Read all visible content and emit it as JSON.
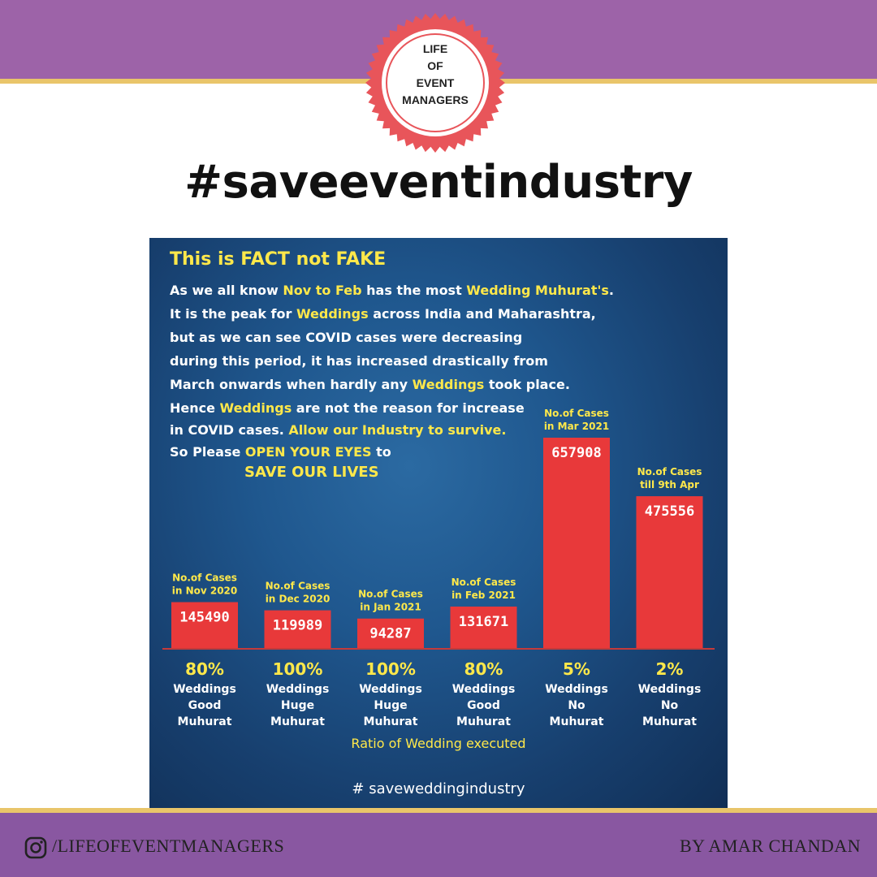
{
  "logo": {
    "lines": [
      "LIFE",
      "OF",
      "EVENT",
      "MANAGERS"
    ]
  },
  "hashtag": "#saveeventindustry",
  "poster": {
    "heading": "This is FACT not FAKE",
    "para1": [
      [
        {
          "t": "As we all know "
        },
        {
          "t": "Nov to Feb",
          "y": true
        },
        {
          "t": " has the most "
        },
        {
          "t": "Wedding Muhurat's",
          "y": true
        },
        {
          "t": "."
        }
      ],
      [
        {
          "t": "It is the peak for "
        },
        {
          "t": "Weddings",
          "y": true
        },
        {
          "t": " across India and Maharashtra,"
        }
      ],
      [
        {
          "t": "but as we can see COVID cases were decreasing"
        }
      ],
      [
        {
          "t": "during this period, it has increased drastically from"
        }
      ],
      [
        {
          "t": "March onwards when hardly any "
        },
        {
          "t": "Weddings",
          "y": true
        },
        {
          "t": " took place."
        }
      ]
    ],
    "para2": [
      [
        {
          "t": "Hence "
        },
        {
          "t": "Weddings",
          "y": true
        },
        {
          "t": " are not the reason for increase"
        }
      ],
      [
        {
          "t": "in COVID cases. "
        },
        {
          "t": "Allow our Industry to survive.",
          "y": true
        }
      ],
      [
        {
          "t": "So Please "
        },
        {
          "t": "OPEN YOUR EYES",
          "y": true
        },
        {
          "t": " to"
        }
      ]
    ],
    "save_text": "SAVE OUR LIVES",
    "footer_hashtag": "# saveweddingindustry"
  },
  "chart_data": {
    "type": "bar",
    "categories": [
      "Nov 2020",
      "Dec 2020",
      "Jan 2021",
      "Feb 2021",
      "Mar 2021",
      "9th Apr"
    ],
    "values": [
      145490,
      119989,
      94287,
      131671,
      657908,
      475556
    ],
    "ylim": [
      0,
      657908
    ],
    "bar_color": "#e8393a",
    "bar_labels": [
      [
        "No.of Cases",
        "in Nov 2020"
      ],
      [
        "No.of Cases",
        "in Dec 2020"
      ],
      [
        "No.of Cases",
        "in Jan 2021"
      ],
      [
        "No.of Cases",
        "in Feb 2021"
      ],
      [
        "No.of Cases",
        "in Mar 2021"
      ],
      [
        "No.of Cases",
        "till 9th Apr"
      ]
    ],
    "wedding_ratio": [
      "80%",
      "100%",
      "100%",
      "80%",
      "5%",
      "2%"
    ],
    "wedding_desc": [
      [
        "Weddings",
        "Good",
        "Muhurat"
      ],
      [
        "Weddings",
        "Huge",
        "Muhurat"
      ],
      [
        "Weddings",
        "Huge",
        "Muhurat"
      ],
      [
        "Weddings",
        "Good",
        "Muhurat"
      ],
      [
        "Weddings",
        "No",
        "Muhurat"
      ],
      [
        "Weddings",
        "No",
        "Muhurat"
      ]
    ],
    "xlabel": "Ratio of Wedding executed"
  },
  "footer": {
    "instagram_handle": "/LIFEOFEVENTMANAGERS",
    "byline": "BY AMAR CHANDAN",
    "icon": "instagram-icon"
  }
}
